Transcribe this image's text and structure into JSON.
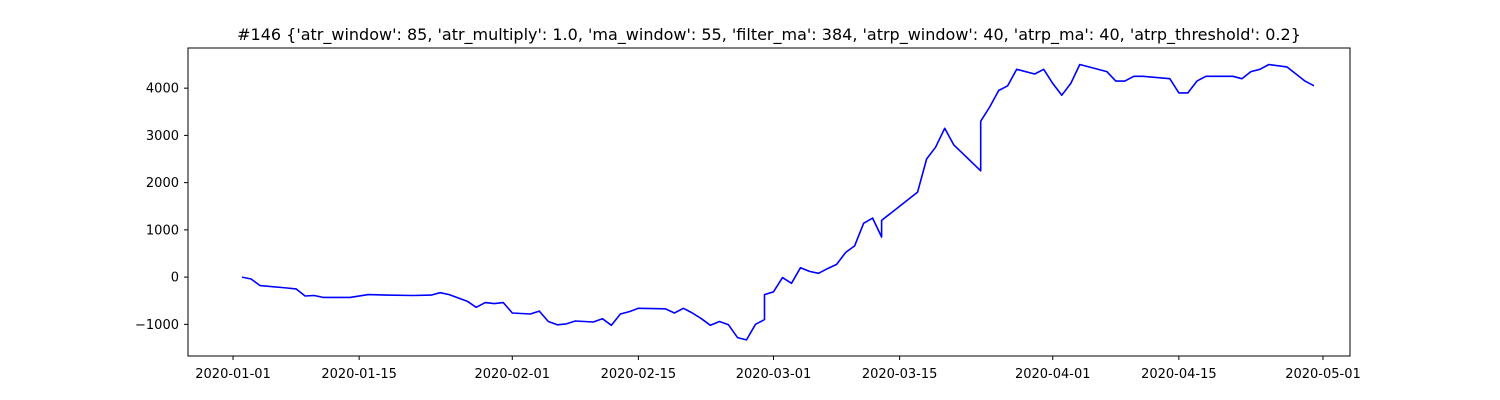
{
  "chart_data": {
    "type": "line",
    "title": "#146 {'atr_window': 85, 'atr_multiply': 1.0, 'ma_window': 55, 'filter_ma': 384, 'atrp_window': 40, 'atrp_ma': 40, 'atrp_threshold': 0.2}",
    "xlabel": "",
    "ylabel": "",
    "x_range": [
      "2019-12-27",
      "2020-05-04"
    ],
    "ylim": [
      -1670,
      4850
    ],
    "x_ticks": [
      {
        "date": "2020-01-01",
        "label": "2020-01-01"
      },
      {
        "date": "2020-01-15",
        "label": "2020-01-15"
      },
      {
        "date": "2020-02-01",
        "label": "2020-02-01"
      },
      {
        "date": "2020-02-15",
        "label": "2020-02-15"
      },
      {
        "date": "2020-03-01",
        "label": "2020-03-01"
      },
      {
        "date": "2020-03-15",
        "label": "2020-03-15"
      },
      {
        "date": "2020-04-01",
        "label": "2020-04-01"
      },
      {
        "date": "2020-04-15",
        "label": "2020-04-15"
      },
      {
        "date": "2020-05-01",
        "label": "2020-05-01"
      }
    ],
    "y_ticks": [
      {
        "value": -1000,
        "label": "−1000"
      },
      {
        "value": 0,
        "label": "0"
      },
      {
        "value": 1000,
        "label": "1000"
      },
      {
        "value": 2000,
        "label": "2000"
      },
      {
        "value": 3000,
        "label": "3000"
      },
      {
        "value": 4000,
        "label": "4000"
      }
    ],
    "grid": false,
    "series": [
      {
        "color": "#0000ff",
        "points": [
          [
            "2020-01-02",
            0
          ],
          [
            "2020-01-03",
            -40
          ],
          [
            "2020-01-04",
            -180
          ],
          [
            "2020-01-07",
            -230
          ],
          [
            "2020-01-08",
            -250
          ],
          [
            "2020-01-09",
            -400
          ],
          [
            "2020-01-10",
            -390
          ],
          [
            "2020-01-11",
            -430
          ],
          [
            "2020-01-14",
            -430
          ],
          [
            "2020-01-16",
            -370
          ],
          [
            "2020-01-18",
            -380
          ],
          [
            "2020-01-21",
            -390
          ],
          [
            "2020-01-23",
            -380
          ],
          [
            "2020-01-24",
            -330
          ],
          [
            "2020-01-25",
            -370
          ],
          [
            "2020-01-27",
            -510
          ],
          [
            "2020-01-28",
            -640
          ],
          [
            "2020-01-29",
            -540
          ],
          [
            "2020-01-30",
            -560
          ],
          [
            "2020-01-31",
            -540
          ],
          [
            "2020-02-01",
            -760
          ],
          [
            "2020-02-03",
            -780
          ],
          [
            "2020-02-04",
            -720
          ],
          [
            "2020-02-05",
            -940
          ],
          [
            "2020-02-06",
            -1010
          ],
          [
            "2020-02-07",
            -990
          ],
          [
            "2020-02-08",
            -930
          ],
          [
            "2020-02-10",
            -950
          ],
          [
            "2020-02-11",
            -880
          ],
          [
            "2020-02-12",
            -1020
          ],
          [
            "2020-02-13",
            -780
          ],
          [
            "2020-02-14",
            -730
          ],
          [
            "2020-02-15",
            -660
          ],
          [
            "2020-02-18",
            -670
          ],
          [
            "2020-02-19",
            -760
          ],
          [
            "2020-02-20",
            -660
          ],
          [
            "2020-02-21",
            -760
          ],
          [
            "2020-02-22",
            -880
          ],
          [
            "2020-02-23",
            -1020
          ],
          [
            "2020-02-24",
            -940
          ],
          [
            "2020-02-25",
            -1010
          ],
          [
            "2020-02-26",
            -1280
          ],
          [
            "2020-02-27",
            -1330
          ],
          [
            "2020-02-28",
            -1000
          ],
          [
            "2020-02-29",
            -900
          ],
          [
            "2020-02-29",
            -370
          ],
          [
            "2020-03-01",
            -310
          ],
          [
            "2020-03-02",
            -10
          ],
          [
            "2020-03-03",
            -130
          ],
          [
            "2020-03-04",
            200
          ],
          [
            "2020-03-05",
            120
          ],
          [
            "2020-03-06",
            80
          ],
          [
            "2020-03-07",
            180
          ],
          [
            "2020-03-08",
            270
          ],
          [
            "2020-03-09",
            520
          ],
          [
            "2020-03-10",
            660
          ],
          [
            "2020-03-11",
            1140
          ],
          [
            "2020-03-12",
            1250
          ],
          [
            "2020-03-13",
            850
          ],
          [
            "2020-03-13",
            1200
          ],
          [
            "2020-03-17",
            1800
          ],
          [
            "2020-03-18",
            2500
          ],
          [
            "2020-03-19",
            2750
          ],
          [
            "2020-03-20",
            3150
          ],
          [
            "2020-03-21",
            2800
          ],
          [
            "2020-03-24",
            2250
          ],
          [
            "2020-03-24",
            3300
          ],
          [
            "2020-03-25",
            3600
          ],
          [
            "2020-03-26",
            3950
          ],
          [
            "2020-03-27",
            4050
          ],
          [
            "2020-03-28",
            4400
          ],
          [
            "2020-03-30",
            4300
          ],
          [
            "2020-03-31",
            4400
          ],
          [
            "2020-04-01",
            4100
          ],
          [
            "2020-04-02",
            3850
          ],
          [
            "2020-04-03",
            4100
          ],
          [
            "2020-04-04",
            4500
          ],
          [
            "2020-04-07",
            4350
          ],
          [
            "2020-04-08",
            4150
          ],
          [
            "2020-04-09",
            4150
          ],
          [
            "2020-04-10",
            4250
          ],
          [
            "2020-04-11",
            4250
          ],
          [
            "2020-04-14",
            4200
          ],
          [
            "2020-04-15",
            3900
          ],
          [
            "2020-04-16",
            3900
          ],
          [
            "2020-04-17",
            4150
          ],
          [
            "2020-04-18",
            4250
          ],
          [
            "2020-04-20",
            4250
          ],
          [
            "2020-04-21",
            4250
          ],
          [
            "2020-04-22",
            4200
          ],
          [
            "2020-04-23",
            4350
          ],
          [
            "2020-04-24",
            4400
          ],
          [
            "2020-04-25",
            4500
          ],
          [
            "2020-04-27",
            4450
          ],
          [
            "2020-04-28",
            4300
          ],
          [
            "2020-04-29",
            4150
          ],
          [
            "2020-04-30",
            4050
          ]
        ]
      }
    ]
  }
}
